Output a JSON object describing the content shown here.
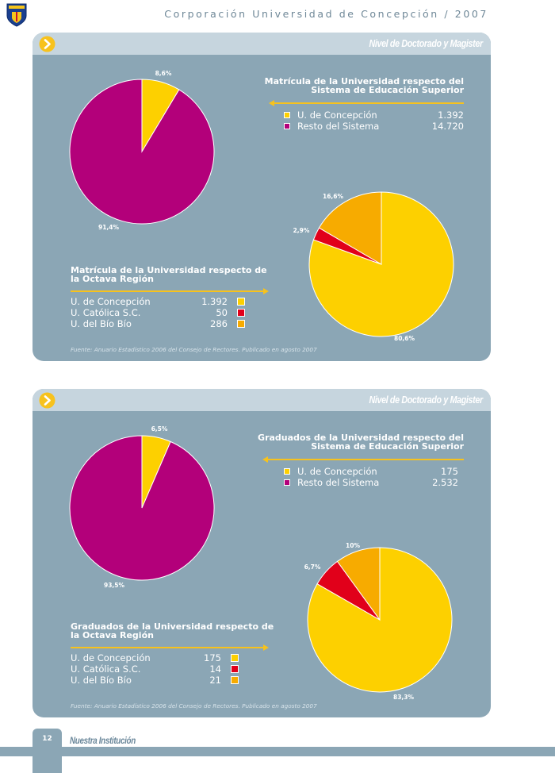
{
  "header": {
    "title": "Corporación Universidad de Concepción / 2007"
  },
  "colors": {
    "panel": "#8ba6b5",
    "panel_top": "#c6d5de",
    "yellow": "#fdd000",
    "magenta": "#b3007a",
    "red": "#e1001a",
    "orange": "#f7ab00",
    "accent": "#f7c21d"
  },
  "panels": [
    {
      "section_label": "Nivel de Doctorado y Magister",
      "national": {
        "title_line1": "Matrícula de la Universidad respecto del",
        "title_line2": "Sistema de Educación Superior",
        "rows": [
          {
            "label": "U. de Concepción",
            "value": "1.392"
          },
          {
            "label": "Resto del Sistema",
            "value": "14.720"
          }
        ]
      },
      "regional": {
        "title_line1": "Matrícula de la Universidad respecto de",
        "title_line2": "la Octava Región",
        "rows": [
          {
            "label": "U. de Concepción",
            "value": "1.392"
          },
          {
            "label": "U. Católica S.C.",
            "value": "50"
          },
          {
            "label": "U. del Bío Bío",
            "value": "286"
          }
        ]
      },
      "source": "Fuente: Anuario Estadístico 2006 del Consejo de Rectores. Publicado en agosto 2007"
    },
    {
      "section_label": "Nivel de Doctorado y Magister",
      "national": {
        "title_line1": "Graduados de la Universidad respecto del",
        "title_line2": "Sistema de Educación Superior",
        "rows": [
          {
            "label": "U. de Concepción",
            "value": "175"
          },
          {
            "label": "Resto del Sistema",
            "value": "2.532"
          }
        ]
      },
      "regional": {
        "title_line1": "Graduados de la Universidad respecto de",
        "title_line2": "la Octava Región",
        "rows": [
          {
            "label": "U. de Concepción",
            "value": "175"
          },
          {
            "label": "U. Católica S.C.",
            "value": "14"
          },
          {
            "label": "U. del Bío Bío",
            "value": "21"
          }
        ]
      },
      "source": "Fuente: Anuario Estadístico 2006 del Consejo de Rectores. Publicado en agosto 2007"
    }
  ],
  "chart_data": [
    {
      "type": "pie",
      "categories": [
        "U. de Concepción",
        "Resto del Sistema"
      ],
      "values": [
        8.6,
        91.4
      ],
      "data_labels": [
        "8,6%",
        "91,4%"
      ],
      "colors": [
        "#fdd000",
        "#b3007a"
      ]
    },
    {
      "type": "pie",
      "categories": [
        "U. de Concepción",
        "U. Católica S.C.",
        "U. del Bío Bío"
      ],
      "values": [
        80.6,
        2.9,
        16.6
      ],
      "data_labels": [
        "80,6%",
        "2,9%",
        "16,6%"
      ],
      "colors": [
        "#fdd000",
        "#e1001a",
        "#f7ab00"
      ]
    },
    {
      "type": "pie",
      "categories": [
        "U. de Concepción",
        "Resto del Sistema"
      ],
      "values": [
        6.5,
        93.5
      ],
      "data_labels": [
        "6,5%",
        "93,5%"
      ],
      "colors": [
        "#fdd000",
        "#b3007a"
      ]
    },
    {
      "type": "pie",
      "categories": [
        "U. de Concepción",
        "U. Católica S.C.",
        "U. del Bío Bío"
      ],
      "values": [
        83.3,
        6.7,
        10
      ],
      "data_labels": [
        "83,3%",
        "6,7%",
        "10%"
      ],
      "colors": [
        "#fdd000",
        "#e1001a",
        "#f7ab00"
      ]
    }
  ],
  "footer": {
    "page_number": "12",
    "section": "Nuestra Institución"
  }
}
